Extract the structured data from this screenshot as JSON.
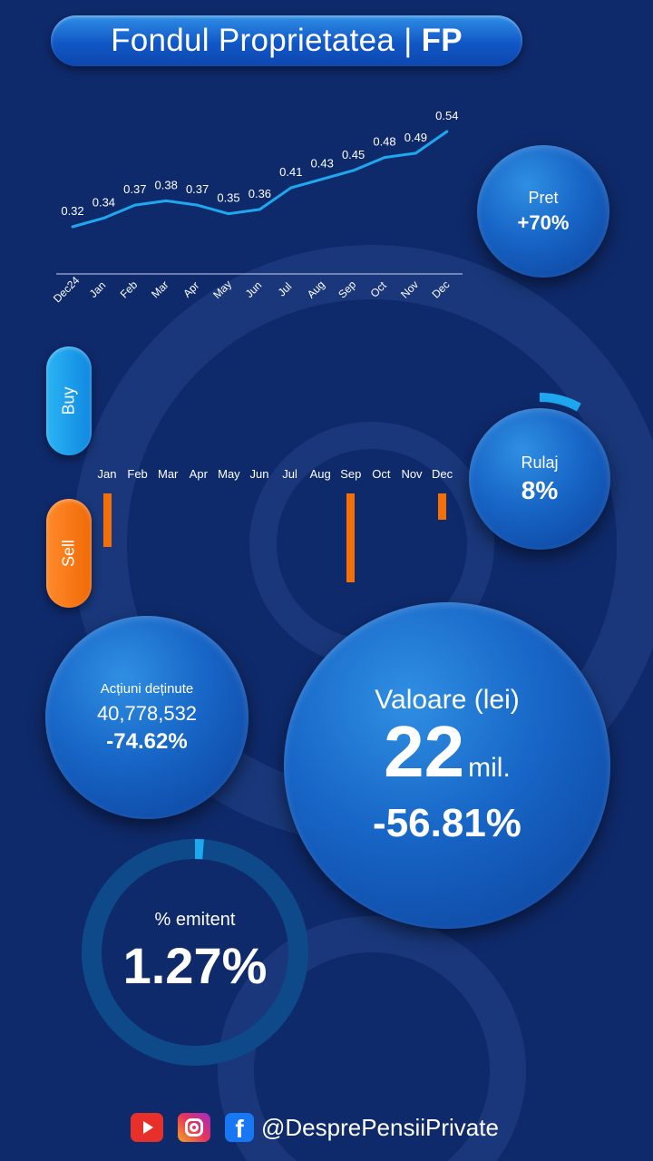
{
  "title": {
    "name": "Fondul Proprietatea",
    "separator": "|",
    "ticker": "FP"
  },
  "colors": {
    "background": "#0f2a6b",
    "line": "#1ea8f0",
    "buy": "#1ea8f0",
    "sell": "#f26f0a",
    "ring_track": "#0e4a8a",
    "ring_fill": "#1ea8f0"
  },
  "chart_data": [
    {
      "type": "line",
      "categories": [
        "Dec24",
        "Jan",
        "Feb",
        "Mar",
        "Apr",
        "May",
        "Jun",
        "Jul",
        "Aug",
        "Sep",
        "Oct",
        "Nov",
        "Dec"
      ],
      "values": [
        0.32,
        0.34,
        0.37,
        0.38,
        0.37,
        0.35,
        0.36,
        0.41,
        0.43,
        0.45,
        0.48,
        0.49,
        0.54
      ],
      "data_labels": [
        "0.32",
        "0.34",
        "0.37",
        "0.38",
        "0.37",
        "0.35",
        "0.36",
        "0.41",
        "0.43",
        "0.45",
        "0.48",
        "0.49",
        "0.54"
      ],
      "grid": false
    },
    {
      "type": "bar",
      "categories": [
        "Jan",
        "Feb",
        "Mar",
        "Apr",
        "May",
        "Jun",
        "Jul",
        "Aug",
        "Sep",
        "Oct",
        "Nov",
        "Dec"
      ],
      "series": [
        {
          "values": [
            0,
            0,
            0,
            0,
            0,
            0,
            0,
            0,
            0,
            0,
            0,
            0
          ]
        },
        {
          "values": [
            60,
            0,
            0,
            0,
            0,
            0,
            0,
            0,
            100,
            0,
            0,
            30
          ]
        }
      ],
      "axis_labels": {
        "positive": "Buy",
        "negative": "Sell"
      }
    }
  ],
  "pret": {
    "label": "Pret",
    "value": "+70%"
  },
  "rulaj": {
    "label": "Rulaj",
    "value": "8%",
    "fraction": 0.08
  },
  "actiuni": {
    "label": "Acțiuni deținute",
    "count": "40,778,532",
    "change": "-74.62%"
  },
  "valoare": {
    "label": "Valoare (lei)",
    "number": "22",
    "unit": "mil.",
    "change": "-56.81%"
  },
  "emitent": {
    "label": "% emitent",
    "value": "1.27%",
    "fraction": 0.0127
  },
  "footer": {
    "icons": [
      "youtube-icon",
      "instagram-icon",
      "facebook-icon"
    ],
    "fb_glyph": "f",
    "handle": "@DesprePensiiPrivate"
  }
}
